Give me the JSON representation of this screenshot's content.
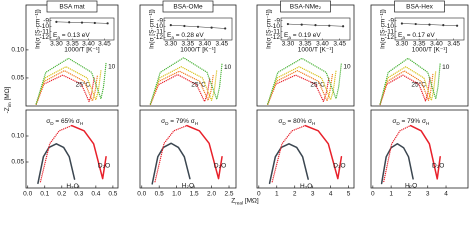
{
  "xlabel": [
    "Z",
    "real",
    " [MΩ]"
  ],
  "ylabel": [
    "-Z",
    "im",
    " [MΩ]"
  ],
  "chart_data": [
    {
      "type": "line",
      "title": "BSA mat",
      "xlim": [
        -0.01,
        0.53
      ],
      "ylim": [
        0,
        0.18
      ],
      "yticks": [
        0.05,
        {
          "value": 0.1,
          "label": "0.10"
        }
      ],
      "series": [
        {
          "name": "25°C",
          "color": "#e8202a",
          "style": "dotted",
          "x": [
            0.05,
            0.095,
            0.205,
            0.315,
            0.36,
            0.375,
            0.39
          ],
          "values": [
            0.003,
            0.039,
            0.055,
            0.039,
            0.008,
            0.022,
            0.05
          ]
        },
        {
          "color": "#f07b1c",
          "style": "dotted",
          "x": [
            0.05,
            0.098,
            0.215,
            0.332,
            0.38,
            0.395,
            0.41
          ],
          "values": [
            0.003,
            0.044,
            0.063,
            0.044,
            0.009,
            0.025,
            0.056
          ]
        },
        {
          "color": "#d9c21c",
          "style": "dotted",
          "x": [
            0.05,
            0.101,
            0.225,
            0.349,
            0.4,
            0.415,
            0.43
          ],
          "values": [
            0.004,
            0.05,
            0.07,
            0.05,
            0.011,
            0.028,
            0.063
          ]
        },
        {
          "name": "10",
          "color": "#4bb33a",
          "style": "dotted",
          "x": [
            0.05,
            0.106,
            0.24,
            0.375,
            0.43,
            0.445,
            0.46
          ],
          "values": [
            0.004,
            0.06,
            0.085,
            0.06,
            0.013,
            0.034,
            0.077
          ]
        }
      ]
    },
    {
      "type": "scatter",
      "ylabel": "ln(σ [S·cm⁻¹])",
      "xlabel": "1000/T [K⁻¹]",
      "annotation": [
        "E",
        "a",
        " = 0.13 eV"
      ],
      "xlim": [
        3.28,
        3.48
      ],
      "ylim": [
        -12.5,
        -8.5
      ],
      "xticks": [
        {
          "value": 3.3,
          "label": "3.30"
        },
        3.35,
        {
          "value": 3.4,
          "label": "3.40"
        },
        3.45
      ],
      "yticks": [
        -9,
        -10,
        -11,
        -12
      ],
      "color": "#333333",
      "x": [
        3.3,
        3.34,
        3.38,
        3.42,
        3.46
      ],
      "values": [
        -9.2,
        -9.27,
        -9.33,
        -9.4,
        -9.47
      ]
    },
    {
      "type": "line",
      "annotation": [
        "σ",
        "D",
        " = 65% σ",
        "H"
      ],
      "xlim": [
        -0.01,
        0.53
      ],
      "ylim": [
        0,
        0.15
      ],
      "xticks": [
        {
          "value": 0,
          "label": "0.0"
        },
        0.1,
        0.2,
        0.3,
        0.4,
        0.5
      ],
      "yticks": [
        0.05,
        {
          "value": 0.1,
          "label": "0.10"
        }
      ],
      "series": [
        {
          "name": "H₂O",
          "color": "#3b4650",
          "x": [
            0.06,
            0.092,
            0.125,
            0.168,
            0.211,
            0.244,
            0.275
          ],
          "values": [
            0.009,
            0.06,
            0.078,
            0.085,
            0.078,
            0.06,
            0.017
          ]
        },
        {
          "name": "D₂O",
          "color": "#e8202a",
          "x": [
            0.258,
            0.331,
            0.387,
            0.44,
            0.46
          ],
          "values": [
            0.12,
            0.11,
            0.085,
            0.018,
            0.06
          ]
        },
        {
          "color": "#e8202a",
          "style": "dotted",
          "x": [
            0.075,
            0.129,
            0.185,
            0.258
          ],
          "values": [
            0.012,
            0.085,
            0.11,
            0.12
          ]
        }
      ]
    },
    {
      "type": "line",
      "title": "BSA-OMe",
      "xlim": [
        -0.05,
        2.7
      ],
      "ylim": [
        0,
        0.9
      ],
      "series": [
        {
          "name": "25°C",
          "color": "#e8202a",
          "style": "dotted",
          "x": [
            0.25,
            0.48,
            1.03,
            1.57,
            1.8,
            1.88,
            1.95
          ],
          "values": [
            0.014,
            0.19,
            0.28,
            0.19,
            0.04,
            0.11,
            0.25
          ]
        },
        {
          "color": "#f07b1c",
          "style": "dotted",
          "x": [
            0.25,
            0.49,
            1.08,
            1.66,
            1.9,
            1.98,
            2.05
          ],
          "values": [
            0.016,
            0.22,
            0.31,
            0.22,
            0.05,
            0.13,
            0.28
          ]
        },
        {
          "color": "#d9c21c",
          "style": "dotted",
          "x": [
            0.25,
            0.51,
            1.13,
            1.74,
            2.0,
            2.08,
            2.15
          ],
          "values": [
            0.018,
            0.25,
            0.35,
            0.25,
            0.05,
            0.14,
            0.32
          ]
        },
        {
          "name": "10",
          "color": "#4bb33a",
          "style": "dotted",
          "x": [
            0.25,
            0.53,
            1.2,
            1.87,
            2.15,
            2.23,
            2.3
          ],
          "values": [
            0.02,
            0.3,
            0.43,
            0.3,
            0.06,
            0.17,
            0.38
          ]
        }
      ]
    },
    {
      "type": "scatter",
      "ylabel": "ln(σ [S·cm⁻¹])",
      "xlabel": "1000/T [K⁻¹]",
      "annotation": [
        "E",
        "a",
        " = 0.28 eV"
      ],
      "xlim": [
        3.28,
        3.48
      ],
      "ylim": [
        -12.5,
        -8.5
      ],
      "xticks": [
        {
          "value": 3.3,
          "label": "3.30"
        },
        3.35,
        {
          "value": 3.4,
          "label": "3.40"
        },
        3.45
      ],
      "yticks": [
        -9,
        -10,
        -11,
        -12
      ],
      "color": "#333333",
      "x": [
        3.3,
        3.34,
        3.38,
        3.42,
        3.46
      ],
      "values": [
        -9.8,
        -9.95,
        -10.1,
        -10.25,
        -10.4
      ]
    },
    {
      "type": "line",
      "annotation": [
        "σ",
        "D",
        " = 79% σ",
        "H"
      ],
      "xlim": [
        -0.05,
        2.7
      ],
      "ylim": [
        0,
        0.75
      ],
      "xticks": [
        {
          "value": 0,
          "label": "0.0"
        },
        0.5,
        {
          "value": 1,
          "label": "1.0"
        },
        1.5,
        {
          "value": 2,
          "label": "2.0"
        },
        2.5
      ],
      "series": [
        {
          "name": "H₂O",
          "color": "#3b4650",
          "x": [
            0.3,
            0.46,
            0.62,
            0.84,
            1.05,
            1.22,
            1.38
          ],
          "values": [
            0.04,
            0.3,
            0.39,
            0.43,
            0.39,
            0.3,
            0.09
          ]
        },
        {
          "name": "D₂O",
          "color": "#e8202a",
          "x": [
            1.29,
            1.65,
            1.93,
            2.2,
            2.3
          ],
          "values": [
            0.6,
            0.55,
            0.43,
            0.09,
            0.3
          ]
        },
        {
          "color": "#e8202a",
          "style": "dotted",
          "x": [
            0.38,
            0.64,
            0.92,
            1.29
          ],
          "values": [
            0.06,
            0.43,
            0.55,
            0.6
          ]
        }
      ]
    },
    {
      "type": "line",
      "title": "BSA-NMe₂",
      "xlim": [
        -0.1,
        5.3
      ],
      "ylim": [
        0,
        1.8
      ],
      "series": [
        {
          "name": "25°C",
          "color": "#e8202a",
          "style": "dotted",
          "x": [
            0.5,
            0.95,
            2.05,
            3.15,
            3.6,
            3.75,
            3.9
          ],
          "values": [
            0.03,
            0.39,
            0.55,
            0.39,
            0.08,
            0.22,
            0.5
          ]
        },
        {
          "color": "#f07b1c",
          "style": "dotted",
          "x": [
            0.5,
            0.98,
            2.15,
            3.32,
            3.8,
            3.95,
            4.1
          ],
          "values": [
            0.03,
            0.44,
            0.63,
            0.44,
            0.09,
            0.25,
            0.56
          ]
        },
        {
          "color": "#d9c21c",
          "style": "dotted",
          "x": [
            0.5,
            1.01,
            2.25,
            3.49,
            4.0,
            4.15,
            4.3
          ],
          "values": [
            0.04,
            0.5,
            0.7,
            0.5,
            0.11,
            0.28,
            0.63
          ]
        },
        {
          "name": "10",
          "color": "#4bb33a",
          "style": "dotted",
          "x": [
            0.5,
            1.06,
            2.4,
            3.75,
            4.3,
            4.45,
            4.6
          ],
          "values": [
            0.04,
            0.6,
            0.85,
            0.6,
            0.13,
            0.34,
            0.77
          ]
        }
      ]
    },
    {
      "type": "scatter",
      "ylabel": "ln(σ [S·cm⁻¹])",
      "xlabel": "1000/T [K⁻¹]",
      "annotation": [
        "E",
        "a",
        " = 0.19 eV"
      ],
      "xlim": [
        3.28,
        3.48
      ],
      "ylim": [
        -12.5,
        -8.5
      ],
      "xticks": [
        {
          "value": 3.3,
          "label": "3.30"
        },
        3.35,
        {
          "value": 3.4,
          "label": "3.40"
        },
        3.45
      ],
      "yticks": [
        -9,
        -10,
        -11,
        -12
      ],
      "color": "#333333",
      "x": [
        3.3,
        3.34,
        3.38,
        3.42,
        3.46
      ],
      "values": [
        -9.6,
        -9.7,
        -9.8,
        -9.9,
        -10.0
      ]
    },
    {
      "type": "line",
      "annotation": [
        "σ",
        "D",
        " = 80% σ",
        "H"
      ],
      "xlim": [
        -0.1,
        5.3
      ],
      "ylim": [
        0,
        1.5
      ],
      "xticks": [
        0,
        1,
        2,
        3,
        4,
        5
      ],
      "series": [
        {
          "name": "H₂O",
          "color": "#3b4650",
          "x": [
            0.6,
            0.92,
            1.25,
            1.68,
            2.11,
            2.44,
            2.75
          ],
          "values": [
            0.09,
            0.6,
            0.78,
            0.85,
            0.78,
            0.6,
            0.17
          ]
        },
        {
          "name": "D₂O",
          "color": "#e8202a",
          "x": [
            2.58,
            3.31,
            3.87,
            4.4,
            4.6
          ],
          "values": [
            1.2,
            1.1,
            0.85,
            0.18,
            0.6
          ]
        },
        {
          "color": "#e8202a",
          "style": "dotted",
          "x": [
            0.75,
            1.29,
            1.85,
            2.58
          ],
          "values": [
            0.12,
            0.85,
            1.1,
            1.2
          ]
        }
      ]
    },
    {
      "type": "line",
      "title": "BSA-Hex",
      "xlim": [
        -0.1,
        5.2
      ],
      "ylim": [
        0,
        1.44
      ],
      "series": [
        {
          "name": "25°C",
          "color": "#e8202a",
          "style": "dotted",
          "x": [
            0.4,
            0.76,
            1.64,
            2.52,
            2.88,
            3.0,
            3.12
          ],
          "values": [
            0.02,
            0.31,
            0.44,
            0.31,
            0.07,
            0.18,
            0.4
          ]
        },
        {
          "color": "#f07b1c",
          "style": "dotted",
          "x": [
            0.4,
            0.79,
            1.72,
            2.65,
            3.04,
            3.16,
            3.28
          ],
          "values": [
            0.03,
            0.35,
            0.5,
            0.35,
            0.08,
            0.2,
            0.45
          ]
        },
        {
          "color": "#d9c21c",
          "style": "dotted",
          "x": [
            0.4,
            0.81,
            1.8,
            2.79,
            3.2,
            3.32,
            3.44
          ],
          "values": [
            0.03,
            0.4,
            0.56,
            0.4,
            0.08,
            0.22,
            0.5
          ]
        },
        {
          "name": "10",
          "color": "#4bb33a",
          "style": "dotted",
          "x": [
            0.4,
            0.84,
            1.92,
            3.0,
            3.44,
            3.56,
            3.68
          ],
          "values": [
            0.03,
            0.48,
            0.68,
            0.48,
            0.1,
            0.27,
            0.61
          ]
        }
      ]
    },
    {
      "type": "scatter",
      "ylabel": "ln(σ [S·cm⁻¹])",
      "xlabel": "1000/T [K⁻¹]",
      "annotation": [
        "E",
        "a",
        " = 0.17 eV"
      ],
      "xlim": [
        3.28,
        3.48
      ],
      "ylim": [
        -12.5,
        -8.5
      ],
      "xticks": [
        {
          "value": 3.3,
          "label": "3.30"
        },
        3.35,
        {
          "value": 3.4,
          "label": "3.40"
        },
        3.45
      ],
      "yticks": [
        -9,
        -10,
        -11,
        -12
      ],
      "color": "#333333",
      "x": [
        3.3,
        3.34,
        3.38,
        3.42,
        3.46
      ],
      "values": [
        -9.5,
        -9.6,
        -9.7,
        -9.8,
        -9.9
      ]
    },
    {
      "type": "line",
      "annotation": [
        "σ",
        "D",
        " = 79% σ",
        "H"
      ],
      "xlim": [
        -0.1,
        5.2
      ],
      "ylim": [
        0,
        1.2
      ],
      "xticks": [
        0,
        1,
        2,
        3,
        4
      ],
      "series": [
        {
          "name": "H₂O",
          "color": "#3b4650",
          "x": [
            0.48,
            0.73,
            1.0,
            1.34,
            1.68,
            1.95,
            2.2
          ],
          "values": [
            0.07,
            0.48,
            0.62,
            0.68,
            0.62,
            0.48,
            0.14
          ]
        },
        {
          "name": "D₂O",
          "color": "#e8202a",
          "x": [
            2.06,
            2.64,
            3.09,
            3.52,
            3.68
          ],
          "values": [
            0.96,
            0.88,
            0.68,
            0.14,
            0.48
          ]
        },
        {
          "color": "#e8202a",
          "style": "dotted",
          "x": [
            0.6,
            1.03,
            1.48,
            2.06
          ],
          "values": [
            0.1,
            0.68,
            0.88,
            0.96
          ]
        }
      ]
    }
  ]
}
